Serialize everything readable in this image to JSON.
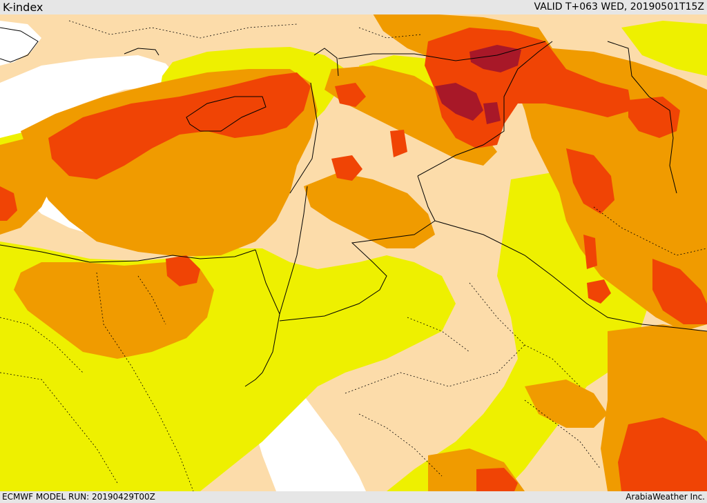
{
  "header": {
    "title": "K-index",
    "valid": "VALID T+063 WED, 20190501T15Z"
  },
  "footer": {
    "model_run": "ECMWF MODEL RUN: 20190429T00Z",
    "credit": "ArabiaWeather Inc."
  },
  "palette": {
    "water": "#ffffff",
    "band_low": "#fcdcaa",
    "band_1": "#eef000",
    "band_2": "#f09b00",
    "band_3": "#f04405",
    "band_4": "#a81828",
    "border": "#000000"
  }
}
